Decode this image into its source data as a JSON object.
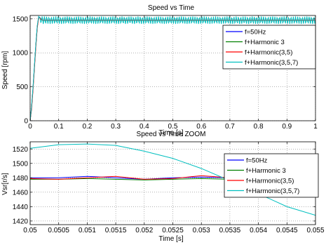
{
  "figure": {
    "background": "#ffffff"
  },
  "chart_data": [
    {
      "type": "line",
      "title": "Speed vs Time",
      "xlabel": "Time [s]",
      "ylabel": "Speed [rpm]",
      "xlim": [
        0,
        1
      ],
      "ylim": [
        0,
        1550
      ],
      "xticks": [
        0,
        0.1,
        0.2,
        0.3,
        0.4,
        0.5,
        0.6,
        0.7,
        0.8,
        0.9,
        1
      ],
      "xtick_labels": [
        "0",
        "0.1",
        "0.2",
        "0.3",
        "0.4",
        "0.5",
        "0.6",
        "0.7",
        "0.8",
        "0.9",
        "1"
      ],
      "yticks": [
        0,
        500,
        1000,
        1500
      ],
      "ytick_labels": [
        "0",
        "500",
        "1000",
        "1500"
      ],
      "grid": true,
      "legend_position": "top-right",
      "series": [
        {
          "name": "f=50Hz",
          "color": "#0000ff",
          "x": [
            0,
            0.005,
            0.01,
            0.015,
            0.02,
            0.025,
            0.03,
            0.035,
            0.04,
            0.05,
            0.1,
            0.2,
            0.3,
            0.4,
            0.5,
            0.6,
            0.7,
            0.8,
            0.9,
            1.0
          ],
          "y": [
            0,
            200,
            480,
            800,
            1120,
            1390,
            1530,
            1515,
            1485,
            1480,
            1480,
            1480,
            1480,
            1480,
            1480,
            1480,
            1480,
            1480,
            1480,
            1480
          ]
        },
        {
          "name": "f+Harmonic 3",
          "color": "#008000",
          "x": [
            0,
            0.005,
            0.01,
            0.015,
            0.02,
            0.025,
            0.03,
            0.035,
            0.04,
            0.05,
            0.1,
            0.2,
            0.3,
            0.4,
            0.5,
            0.6,
            0.7,
            0.8,
            0.9,
            1.0
          ],
          "y": [
            0,
            190,
            470,
            790,
            1110,
            1380,
            1525,
            1512,
            1483,
            1479,
            1479,
            1479,
            1479,
            1479,
            1479,
            1479,
            1479,
            1479,
            1479,
            1479
          ]
        },
        {
          "name": "f+Harmonic(3,5)",
          "color": "#ff0000",
          "x": [
            0,
            0.005,
            0.01,
            0.015,
            0.02,
            0.025,
            0.03,
            0.035,
            0.04,
            0.05,
            0.1,
            0.2,
            0.3,
            0.4,
            0.5,
            0.6,
            0.7,
            0.8,
            0.9,
            1.0
          ],
          "y": [
            0,
            170,
            450,
            770,
            1090,
            1370,
            1520,
            1510,
            1484,
            1480,
            1480,
            1480,
            1480,
            1480,
            1480,
            1480,
            1480,
            1480,
            1480,
            1480
          ]
        },
        {
          "name": "f+Harmonic(3,5,7)",
          "color": "#00bfbf",
          "ripple": {
            "amplitude": 55,
            "period": 0.008
          },
          "x": [
            0,
            0.005,
            0.01,
            0.015,
            0.02,
            0.025,
            0.03,
            0.035,
            0.04,
            0.05,
            0.1,
            0.2,
            0.3,
            0.4,
            0.5,
            0.6,
            0.7,
            0.8,
            0.9,
            1.0
          ],
          "y": [
            0,
            210,
            490,
            810,
            1130,
            1400,
            1535,
            1505,
            1480,
            1480,
            1480,
            1480,
            1480,
            1480,
            1480,
            1480,
            1480,
            1480,
            1480,
            1480
          ]
        }
      ]
    },
    {
      "type": "line",
      "title": "Speed vs Time ZOOM",
      "xlabel": "Time [s]",
      "ylabel": "Vsr[r/s]",
      "xlim": [
        0.05,
        0.055
      ],
      "ylim": [
        1415,
        1530
      ],
      "xticks": [
        0.05,
        0.0505,
        0.051,
        0.0515,
        0.052,
        0.0525,
        0.053,
        0.0535,
        0.054,
        0.0545,
        0.055
      ],
      "xtick_labels": [
        "0.05",
        "0.0505",
        "0.051",
        "0.0515",
        "0.052",
        "0.0525",
        "0.053",
        "0.0535",
        "0.054",
        "0.0545",
        "0.055"
      ],
      "yticks": [
        1420,
        1440,
        1460,
        1480,
        1500,
        1520
      ],
      "ytick_labels": [
        "1420",
        "1440",
        "1460",
        "1480",
        "1500",
        "1520"
      ],
      "grid": true,
      "legend_position": "right",
      "series": [
        {
          "name": "f=50Hz",
          "color": "#0000ff",
          "x": [
            0.05,
            0.0505,
            0.051,
            0.0515,
            0.052,
            0.0525,
            0.053,
            0.0535,
            0.054,
            0.0545,
            0.055
          ],
          "y": [
            1480,
            1480,
            1482,
            1480,
            1478,
            1480,
            1481,
            1480,
            1480,
            1480,
            1480
          ]
        },
        {
          "name": "f+Harmonic 3",
          "color": "#008000",
          "x": [
            0.05,
            0.0505,
            0.051,
            0.0515,
            0.052,
            0.0525,
            0.053,
            0.0535,
            0.054,
            0.0545,
            0.055
          ],
          "y": [
            1478,
            1478,
            1479,
            1478,
            1477,
            1478,
            1479,
            1478,
            1478,
            1478,
            1478
          ]
        },
        {
          "name": "f+Harmonic(3,5)",
          "color": "#ff0000",
          "x": [
            0.05,
            0.0505,
            0.051,
            0.0515,
            0.052,
            0.0525,
            0.053,
            0.0535,
            0.054,
            0.0545,
            0.055
          ],
          "y": [
            1479,
            1478,
            1480,
            1482,
            1478,
            1479,
            1483,
            1480,
            1479,
            1480,
            1480
          ]
        },
        {
          "name": "f+Harmonic(3,5,7)",
          "color": "#00bfbf",
          "x": [
            0.05,
            0.0505,
            0.051,
            0.0515,
            0.052,
            0.0525,
            0.053,
            0.0535,
            0.054,
            0.0545,
            0.055
          ],
          "y": [
            1521,
            1526,
            1527,
            1525,
            1517,
            1507,
            1493,
            1476,
            1458,
            1440,
            1428
          ]
        }
      ]
    }
  ]
}
